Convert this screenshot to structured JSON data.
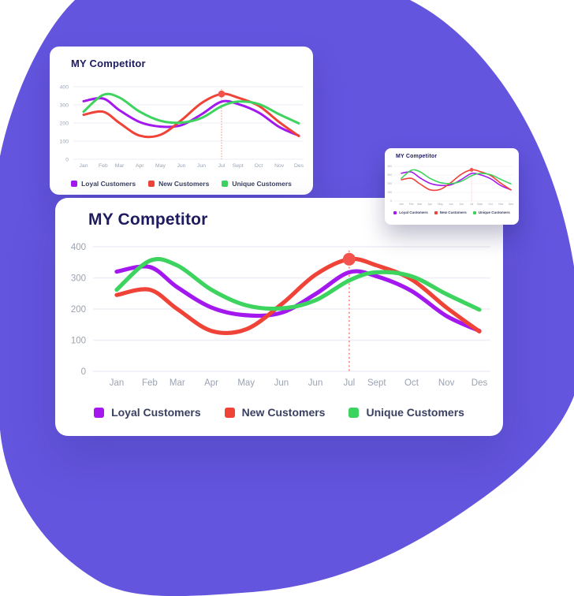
{
  "colors": {
    "blob": "#6355DE",
    "card_bg": "#FFFFFF",
    "title": "#1E1B5E",
    "axis_label": "#9AA3B2",
    "grid": "#EDEEF5",
    "legend_text": "#3A4060"
  },
  "chart_data": {
    "type": "line",
    "title": "MY Competitor",
    "categories": [
      "Jan",
      "Feb",
      "Mar",
      "Apr",
      "May",
      "Jun",
      "Jun",
      "Jul",
      "Sept",
      "Oct",
      "Nov",
      "Des"
    ],
    "series": [
      {
        "name": "Loyal Customers",
        "color": "#A318EE",
        "values": [
          320,
          335,
          270,
          205,
          180,
          188,
          248,
          318,
          305,
          258,
          178,
          130
        ]
      },
      {
        "name": "New Customers",
        "color": "#EF4338",
        "values": [
          245,
          262,
          200,
          130,
          135,
          215,
          310,
          360,
          340,
          295,
          205,
          128
        ]
      },
      {
        "name": "Unique Customers",
        "color": "#3DD35F",
        "values": [
          262,
          355,
          340,
          262,
          212,
          202,
          228,
          292,
          318,
          305,
          248,
          198
        ]
      }
    ],
    "ylim": [
      0,
      400
    ],
    "yticks": [
      "0",
      "100",
      "200",
      "300",
      "400"
    ],
    "grid": "horizontal",
    "legend_position": "bottom",
    "highlight": {
      "series": "New Customers",
      "category": "Jul",
      "category_index": 7,
      "value": 360,
      "marker_color": "#F2544D",
      "guide_line_color": "#F4837D",
      "guide_style": "dotted"
    }
  }
}
